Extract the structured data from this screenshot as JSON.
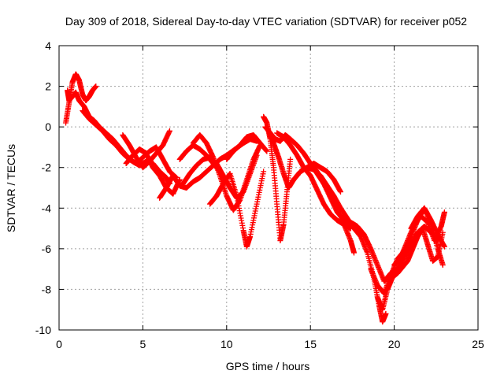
{
  "chart_data": {
    "type": "scatter",
    "title": "Day 309 of 2018, Sidereal Day-to-day VTEC variation (SDTVAR) for receiver p052",
    "xlabel": "GPS time / hours",
    "ylabel": "SDTVAR / TECUs",
    "xlim": [
      0,
      25
    ],
    "ylim": [
      -10,
      4
    ],
    "xticks": [
      "0",
      "5",
      "10",
      "15",
      "20",
      "25"
    ],
    "yticks": [
      "4",
      "2",
      "0",
      "-2",
      "-4",
      "-6",
      "-8",
      "-10"
    ],
    "grid": true,
    "marker": "plus",
    "color": "#ff0000",
    "series": [
      {
        "x": [
          0.4,
          0.6,
          0.8,
          1.0,
          1.2,
          1.4,
          1.6,
          1.8,
          2.0,
          2.2
        ],
        "y": [
          0.2,
          1.2,
          2.2,
          2.6,
          2.3,
          1.6,
          1.3,
          1.5,
          1.8,
          2.0
        ]
      },
      {
        "x": [
          0.5,
          0.6,
          0.8,
          1.0,
          1.2,
          1.5,
          1.8,
          2.1,
          2.4,
          2.8,
          3.2,
          3.6,
          4.0,
          4.4,
          4.8,
          5.2,
          5.6,
          6.0,
          6.4,
          6.6
        ],
        "y": [
          1.8,
          1.3,
          1.5,
          1.7,
          1.3,
          1.0,
          0.5,
          0.3,
          0.0,
          -0.3,
          -0.6,
          -1.0,
          -1.4,
          -1.7,
          -1.9,
          -1.7,
          -1.8,
          -2.2,
          -2.5,
          -2.8
        ]
      },
      {
        "x": [
          1.4,
          1.8,
          2.2,
          2.6,
          3.0,
          3.4,
          3.8,
          4.2,
          4.6,
          5.0,
          5.4,
          5.8,
          6.2,
          6.6,
          7.0
        ],
        "y": [
          0.8,
          0.4,
          0.1,
          -0.2,
          -0.6,
          -0.9,
          -1.3,
          -1.6,
          -1.8,
          -1.5,
          -1.2,
          -1.0,
          -1.6,
          -2.2,
          -2.5
        ]
      },
      {
        "x": [
          3.8,
          4.2,
          4.6,
          5.0,
          5.4,
          5.8,
          6.2,
          6.6
        ],
        "y": [
          -0.4,
          -0.9,
          -1.5,
          -2.0,
          -1.7,
          -1.3,
          -0.9,
          -0.2
        ]
      },
      {
        "x": [
          4.0,
          4.4,
          4.8,
          5.2,
          5.6,
          6.0,
          6.4,
          6.8,
          7.2
        ],
        "y": [
          -1.8,
          -1.4,
          -1.1,
          -1.3,
          -2.0,
          -2.4,
          -3.0,
          -3.3,
          -2.6
        ]
      },
      {
        "x": [
          6.0,
          6.4,
          6.8,
          7.2,
          7.6,
          8.0,
          8.4,
          8.8,
          9.2,
          9.6,
          10.0,
          10.5,
          11.0,
          11.4,
          11.8
        ],
        "y": [
          -3.5,
          -3.0,
          -2.4,
          -2.9,
          -3.0,
          -2.7,
          -2.5,
          -2.2,
          -1.9,
          -1.6,
          -1.4,
          -1.1,
          -0.8,
          -0.6,
          -0.7
        ]
      },
      {
        "x": [
          7.2,
          7.6,
          8.0,
          8.4,
          8.8,
          9.2,
          9.6,
          10.0
        ],
        "y": [
          -1.6,
          -1.2,
          -0.9,
          -1.1,
          -1.4,
          -1.8,
          -2.2,
          -2.7
        ]
      },
      {
        "x": [
          7.4,
          7.8,
          8.2,
          8.6,
          9.0,
          9.4,
          9.8,
          10.2,
          10.6,
          11.0,
          11.4,
          11.8
        ],
        "y": [
          -2.8,
          -2.3,
          -1.9,
          -1.6,
          -1.5,
          -1.8,
          -2.4,
          -3.0,
          -3.5,
          -3.2,
          -2.3,
          -1.4
        ]
      },
      {
        "x": [
          8.0,
          8.4,
          8.8,
          9.2,
          9.6,
          10.0,
          10.4,
          10.8,
          11.2,
          11.6,
          12.0
        ],
        "y": [
          -0.8,
          -0.4,
          -0.8,
          -1.5,
          -2.4,
          -3.4,
          -4.1,
          -3.6,
          -2.6,
          -1.6,
          -0.9
        ]
      },
      {
        "x": [
          9.0,
          9.4,
          9.8,
          10.2,
          10.6,
          11.0,
          11.2,
          11.4,
          11.8,
          12.2
        ],
        "y": [
          -3.8,
          -3.4,
          -2.8,
          -2.3,
          -3.4,
          -5.1,
          -5.9,
          -5.4,
          -3.8,
          -2.2
        ]
      },
      {
        "x": [
          10.0,
          10.4,
          10.8,
          11.2,
          11.6,
          12.0,
          12.4
        ],
        "y": [
          -1.6,
          -1.2,
          -0.9,
          -0.5,
          -0.4,
          -0.8,
          -1.2
        ]
      },
      {
        "x": [
          12.2,
          12.4,
          12.6,
          12.8,
          13.0,
          13.2,
          13.4,
          13.6,
          13.8
        ],
        "y": [
          0.5,
          0.2,
          -0.6,
          -2.0,
          -3.8,
          -5.6,
          -4.8,
          -3.2,
          -1.6
        ]
      },
      {
        "x": [
          12.3,
          12.6,
          12.9,
          13.2,
          13.5,
          13.8,
          14.2,
          14.6,
          15.0,
          15.4,
          15.8,
          16.2,
          16.6,
          17.0,
          17.4,
          17.6
        ],
        "y": [
          0.0,
          -0.3,
          -0.6,
          -0.7,
          -0.4,
          -0.6,
          -0.9,
          -1.3,
          -1.8,
          -2.3,
          -2.8,
          -3.2,
          -3.9,
          -4.8,
          -5.6,
          -6.2
        ]
      },
      {
        "x": [
          12.5,
          12.8,
          13.1,
          13.4,
          13.7,
          14.0,
          14.4,
          14.8,
          15.2,
          15.6,
          16.0,
          16.4,
          16.8
        ],
        "y": [
          -0.2,
          -0.8,
          -1.5,
          -2.3,
          -3.0,
          -2.6,
          -2.2,
          -2.0,
          -1.8,
          -2.0,
          -2.2,
          -2.6,
          -3.2
        ]
      },
      {
        "x": [
          13.0,
          13.4,
          13.8,
          14.2,
          14.6,
          15.0,
          15.4,
          15.8,
          16.2,
          16.6,
          17.0,
          17.4
        ],
        "y": [
          -0.3,
          -0.5,
          -0.9,
          -1.4,
          -2.0,
          -2.4,
          -3.1,
          -3.8,
          -4.3,
          -4.6,
          -4.8,
          -5.0
        ]
      },
      {
        "x": [
          14.0,
          14.4,
          14.8,
          15.2,
          15.6,
          16.0,
          16.4,
          16.8,
          17.2,
          17.6,
          18.0,
          18.4,
          18.8,
          19.1,
          19.3,
          19.5
        ],
        "y": [
          -2.6,
          -2.2,
          -2.0,
          -2.1,
          -2.4,
          -2.9,
          -3.4,
          -4.0,
          -4.5,
          -5.0,
          -5.4,
          -6.2,
          -7.5,
          -8.8,
          -9.6,
          -9.2
        ]
      },
      {
        "x": [
          15.0,
          15.4,
          15.8,
          16.2,
          16.6,
          17.0,
          17.4,
          17.8,
          18.2,
          18.6,
          19.0,
          19.4,
          19.8,
          20.2,
          20.6,
          21.0,
          21.4,
          21.8,
          22.2,
          22.6
        ],
        "y": [
          -1.8,
          -2.2,
          -2.8,
          -3.5,
          -4.2,
          -4.6,
          -4.7,
          -4.9,
          -5.3,
          -6.0,
          -6.8,
          -7.6,
          -7.2,
          -7.0,
          -6.4,
          -5.8,
          -5.2,
          -4.9,
          -5.2,
          -5.6
        ]
      },
      {
        "x": [
          18.6,
          19.0,
          19.4,
          19.8,
          20.2,
          20.6,
          21.0,
          21.4,
          21.8,
          22.2,
          22.6,
          23.0
        ],
        "y": [
          -7.0,
          -7.8,
          -8.2,
          -7.3,
          -6.5,
          -6.1,
          -5.4,
          -4.6,
          -4.0,
          -4.6,
          -5.3,
          -5.9
        ]
      },
      {
        "x": [
          19.0,
          19.3,
          19.6,
          19.9,
          20.2,
          20.5,
          20.8,
          21.1,
          21.4,
          21.7,
          22.0,
          22.3,
          22.6,
          22.9
        ],
        "y": [
          -8.4,
          -9.0,
          -8.0,
          -7.4,
          -7.2,
          -6.9,
          -6.6,
          -6.0,
          -5.4,
          -5.0,
          -5.8,
          -6.6,
          -6.4,
          -5.2
        ]
      },
      {
        "x": [
          20.0,
          20.4,
          20.8,
          21.2,
          21.6,
          22.0,
          22.4,
          22.8,
          23.0
        ],
        "y": [
          -6.8,
          -6.4,
          -5.6,
          -4.8,
          -4.4,
          -4.7,
          -5.6,
          -4.9,
          -4.2
        ]
      },
      {
        "x": [
          21.0,
          21.4,
          21.8,
          22.2,
          22.6,
          22.9
        ],
        "y": [
          -5.0,
          -4.4,
          -4.0,
          -4.8,
          -6.0,
          -6.8
        ]
      }
    ]
  }
}
